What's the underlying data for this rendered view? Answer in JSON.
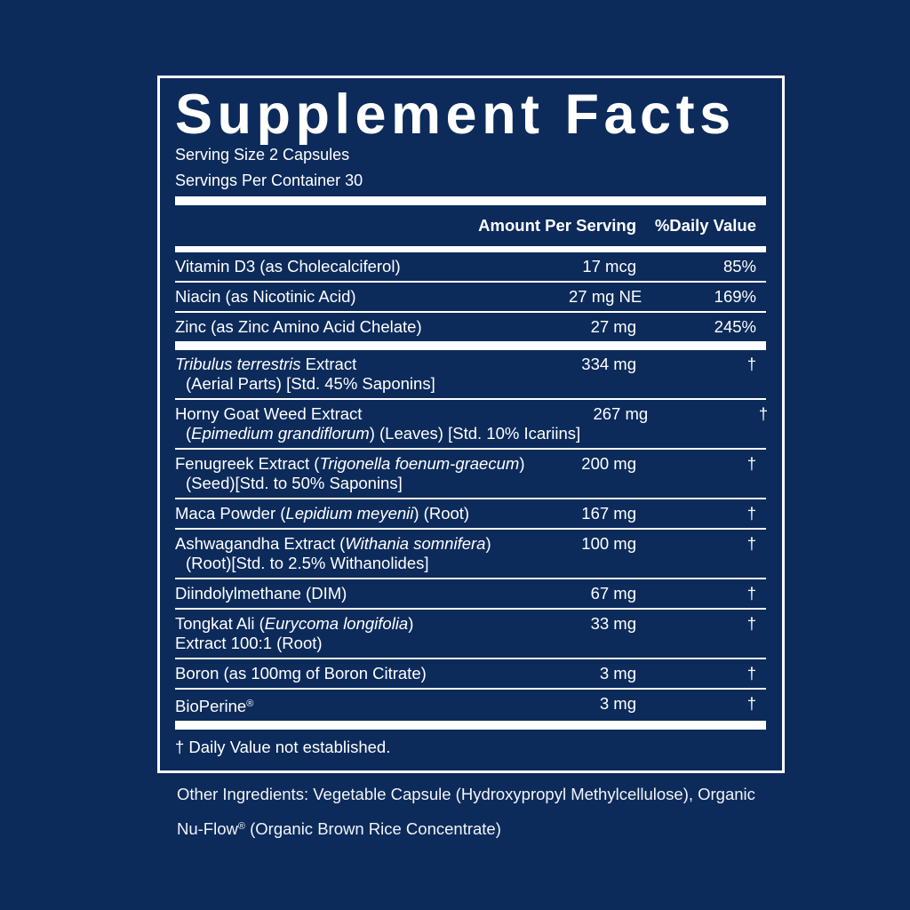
{
  "title": "Supplement Facts",
  "serving_size": "Serving Size 2 Capsules",
  "servings_per_container": "Servings Per Container 30",
  "columns": {
    "amount": "Amount Per Serving",
    "daily_value": "%Daily Value"
  },
  "sections": [
    [
      {
        "name": [
          [
            "Vitamin D3 (as Cholecalciferol)"
          ]
        ],
        "amount": "17 mcg",
        "daily_value": "85%"
      },
      {
        "name": [
          [
            "Niacin (as Nicotinic Acid)"
          ]
        ],
        "amount": "27 mg NE",
        "daily_value": "169%"
      },
      {
        "name": [
          [
            "Zinc (as Zinc Amino Acid Chelate)"
          ]
        ],
        "amount": "27 mg",
        "daily_value": "245%"
      }
    ],
    [
      {
        "name": [
          [
            {
              "text": "Tribulus terrestris",
              "italic": true
            },
            " Extract"
          ],
          [
            "(Aerial Parts) [Std. 45% Saponins]"
          ]
        ],
        "indent": true,
        "amount": "334 mg",
        "daily_value": "†"
      },
      {
        "name": [
          [
            "Horny Goat Weed Extract"
          ],
          [
            "(",
            {
              "text": "Epimedium grandiflorum",
              "italic": true
            },
            ") (Leaves) [Std. 10% Icariins]"
          ]
        ],
        "indent": true,
        "amount": "267 mg",
        "daily_value": "†"
      },
      {
        "name": [
          [
            "Fenugreek Extract (",
            {
              "text": "Trigonella foenum-graecum",
              "italic": true
            },
            ")"
          ],
          [
            "(Seed)[Std. to 50% Saponins]"
          ]
        ],
        "indent": true,
        "amount": "200 mg",
        "daily_value": "†"
      },
      {
        "name": [
          [
            "Maca Powder (",
            {
              "text": "Lepidium meyenii",
              "italic": true
            },
            ") (Root)"
          ]
        ],
        "amount": "167 mg",
        "daily_value": "†"
      },
      {
        "name": [
          [
            "Ashwagandha Extract (",
            {
              "text": "Withania somnifera",
              "italic": true
            },
            ")"
          ],
          [
            "(Root)[Std. to 2.5% Withanolides]"
          ]
        ],
        "indent": true,
        "amount": "100 mg",
        "daily_value": "†"
      },
      {
        "name": [
          [
            "Diindolylmethane (DIM)"
          ]
        ],
        "amount": "67 mg",
        "daily_value": "†"
      },
      {
        "name": [
          [
            "Tongkat Ali (",
            {
              "text": "Eurycoma longifolia",
              "italic": true
            },
            ")"
          ],
          [
            "Extract 100:1 (Root)"
          ]
        ],
        "amount": "33 mg",
        "daily_value": "†"
      },
      {
        "name": [
          [
            "Boron (as 100mg of Boron Citrate)"
          ]
        ],
        "amount": "3 mg",
        "daily_value": "†"
      },
      {
        "name": [
          [
            "BioPerine",
            {
              "text": "®",
              "sup": true
            }
          ]
        ],
        "amount": "3 mg",
        "daily_value": "†"
      }
    ]
  ],
  "footnote": "† Daily Value not established.",
  "other_ingredients": [
    [
      "Other Ingredients: Vegetable Capsule (Hydroxypropyl Methylcellulose), Organic"
    ],
    [
      "Nu-Flow",
      {
        "text": "®",
        "sup": true
      },
      " (Organic Brown Rice Concentrate)"
    ]
  ]
}
